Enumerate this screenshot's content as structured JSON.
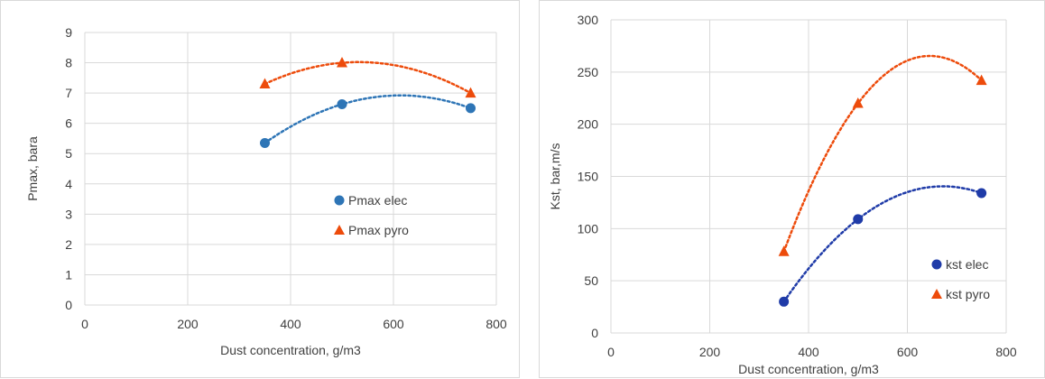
{
  "chart_data": [
    {
      "type": "scatter",
      "xlabel": "Dust concentration, g/m3",
      "ylabel": "Pmax, bara",
      "xlim": [
        0,
        800
      ],
      "ylim": [
        0,
        9
      ],
      "xticks": [
        0,
        200,
        400,
        600,
        800
      ],
      "yticks": [
        0,
        1,
        2,
        3,
        4,
        5,
        6,
        7,
        8,
        9
      ],
      "grid": true,
      "legend_position": "center-right",
      "trendline": "polynomial-2",
      "series": [
        {
          "name": "Pmax elec",
          "marker": "circle",
          "color": "#2E75B6",
          "points": [
            [
              350,
              5.35
            ],
            [
              500,
              6.63
            ],
            [
              750,
              6.5
            ]
          ]
        },
        {
          "name": "Pmax pyro",
          "marker": "triangle",
          "color": "#ED4B0B",
          "points": [
            [
              350,
              7.3
            ],
            [
              500,
              8.0
            ],
            [
              750,
              7.0
            ]
          ]
        }
      ]
    },
    {
      "type": "scatter",
      "xlabel": "Dust concentration, g/m3",
      "ylabel": "Kst, bar,m/s",
      "xlim": [
        0,
        800
      ],
      "ylim": [
        0,
        300
      ],
      "xticks": [
        0,
        200,
        400,
        600,
        800
      ],
      "yticks": [
        0,
        50,
        100,
        150,
        200,
        250,
        300
      ],
      "grid": true,
      "legend_position": "bottom-right",
      "trendline": "polynomial-2",
      "series": [
        {
          "name": "kst elec",
          "marker": "circle",
          "color": "#1F3BA8",
          "points": [
            [
              350,
              30
            ],
            [
              500,
              109
            ],
            [
              750,
              134
            ]
          ]
        },
        {
          "name": "kst pyro",
          "marker": "triangle",
          "color": "#ED4B0B",
          "points": [
            [
              350,
              78
            ],
            [
              500,
              220
            ],
            [
              750,
              242
            ]
          ]
        }
      ]
    }
  ]
}
